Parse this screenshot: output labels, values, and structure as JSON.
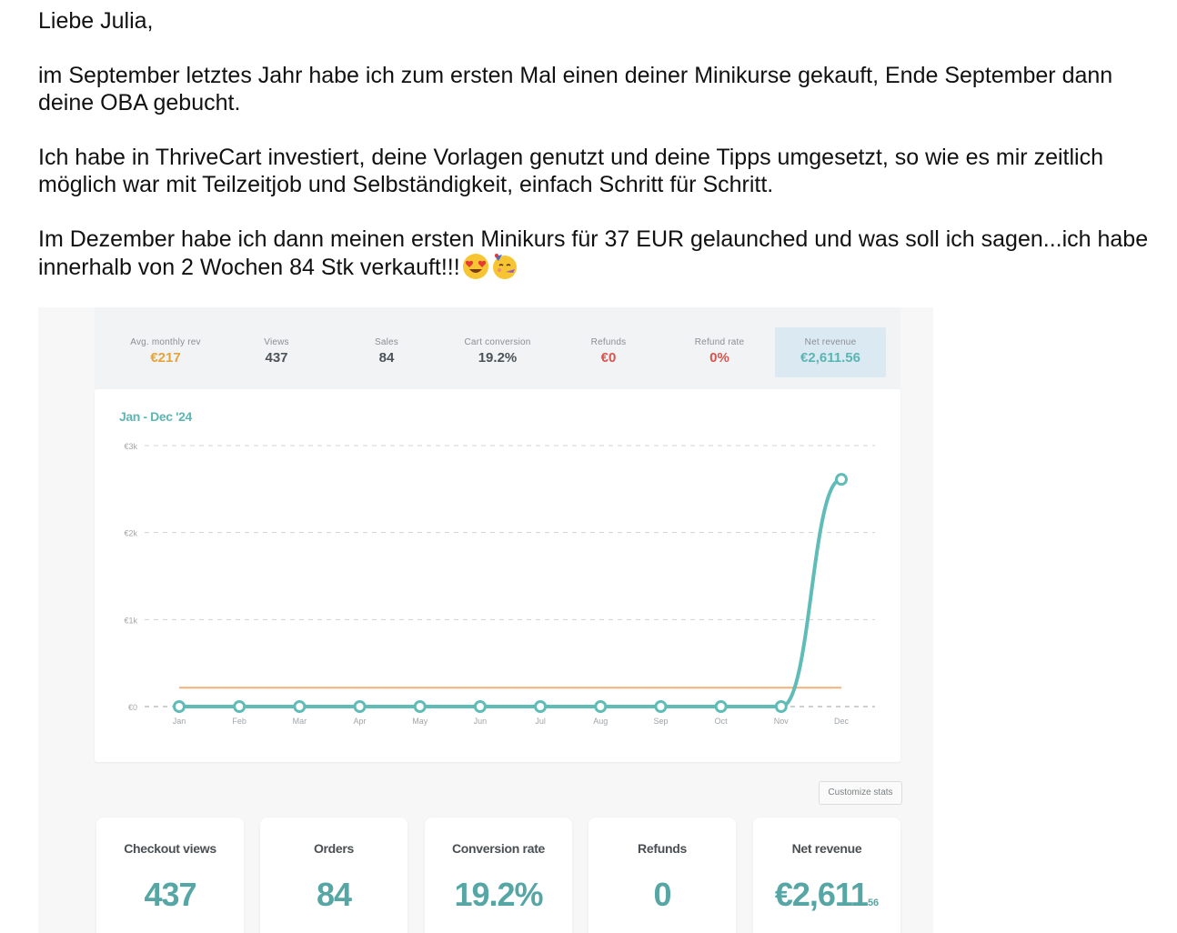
{
  "letter": {
    "greeting": "Liebe Julia,",
    "p1": "im September letztes Jahr habe ich zum ersten Mal einen deiner Minikurse gekauft, Ende September dann deine OBA gebucht.",
    "p2": "Ich habe in ThriveCart investiert, deine Vorlagen genutzt und deine Tipps umgesetzt, so wie es mir zeitlich möglich war mit Teilzeitjob und Selbständigkeit, einfach Schritt für Schritt.",
    "p3": "Im Dezember habe ich dann meinen ersten Minikurs für 37 EUR gelaunched und was soll ich sagen...ich habe innerhalb von 2 Wochen 84 Stk verkauft!!!",
    "emojis": [
      "heart-eyes-face",
      "party-face"
    ]
  },
  "top_stats": [
    {
      "label": "Avg. monthly rev",
      "value": "€217",
      "color": "#e8a23a"
    },
    {
      "label": "Views",
      "value": "437",
      "color": "#4b5358"
    },
    {
      "label": "Sales",
      "value": "84",
      "color": "#4b5358"
    },
    {
      "label": "Cart conversion",
      "value": "19.2%",
      "color": "#4b5358"
    },
    {
      "label": "Refunds",
      "value": "€0",
      "color": "#d9534f"
    },
    {
      "label": "Refund rate",
      "value": "0%",
      "color": "#d9534f"
    },
    {
      "label": "Net revenue",
      "value": "€2,611.56",
      "color": "#5bb5b3"
    }
  ],
  "chart_data": {
    "type": "line",
    "title": "Jan - Dec '24",
    "x": [
      "Jan",
      "Feb",
      "Mar",
      "Apr",
      "May",
      "Jun",
      "Jul",
      "Aug",
      "Sep",
      "Oct",
      "Nov",
      "Dec"
    ],
    "y_ticks": [
      "€0",
      "€1k",
      "€2k",
      "€3k"
    ],
    "ylim": [
      0,
      3000
    ],
    "series": [
      {
        "values": [
          0,
          0,
          0,
          0,
          0,
          0,
          0,
          0,
          0,
          0,
          0,
          2611.56
        ],
        "color": "#5fbcb6"
      },
      {
        "values": [
          217,
          217,
          217,
          217,
          217,
          217,
          217,
          217,
          217,
          217,
          217,
          217
        ],
        "color": "#f0b27a"
      }
    ],
    "grid": true
  },
  "customize_label": "Customize stats",
  "cards": [
    {
      "label": "Checkout views",
      "value": "437",
      "cents": ""
    },
    {
      "label": "Orders",
      "value": "84",
      "cents": ""
    },
    {
      "label": "Conversion rate",
      "value": "19.2%",
      "cents": ""
    },
    {
      "label": "Refunds",
      "value": "0",
      "cents": ""
    },
    {
      "label": "Net revenue",
      "value": "€2,611",
      "cents": "56"
    }
  ]
}
